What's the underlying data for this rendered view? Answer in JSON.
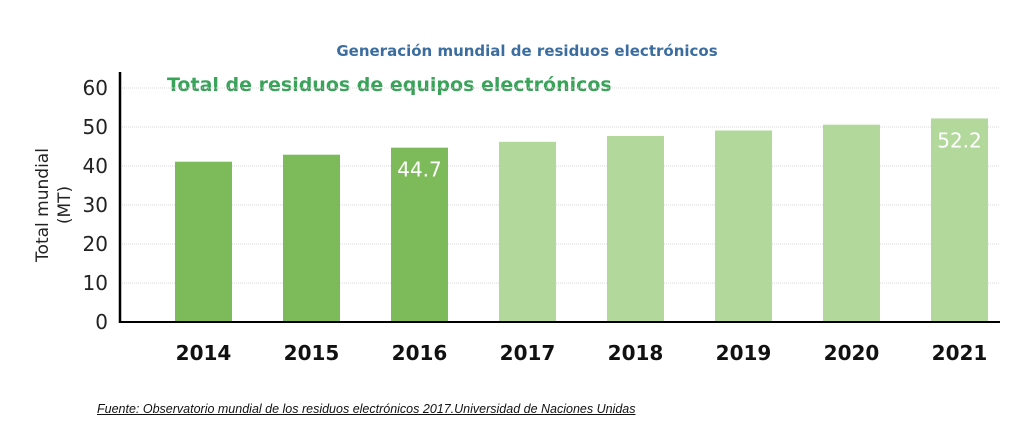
{
  "chart_data": {
    "type": "bar",
    "title": "Generación mundial de residuos electrónicos",
    "subtitle": "Total de residuos de equipos electrónicos",
    "ylabel": "Total mundial (MT)",
    "ylabel_lines": [
      "Total mundial",
      "(MT)"
    ],
    "xlabel": "",
    "ylim": [
      0,
      60
    ],
    "yticks": [
      0,
      10,
      20,
      30,
      40,
      50,
      60
    ],
    "grid": true,
    "categories": [
      "2014",
      "2015",
      "2016",
      "2017",
      "2018",
      "2019",
      "2020",
      "2021"
    ],
    "values": [
      41.1,
      42.9,
      44.7,
      46.2,
      47.7,
      49.1,
      50.6,
      52.2
    ],
    "projected": [
      false,
      false,
      false,
      true,
      true,
      true,
      true,
      true
    ],
    "data_labels": {
      "2016": "44.7",
      "2021": "52.2"
    },
    "colors": {
      "actual": "#7dbb5a",
      "projected": "#b3d89c",
      "title": "#3b6e9e",
      "subtitle": "#3aa35a"
    }
  },
  "source": "Fuente: Observatorio mundial de los residuos electrónicos 2017.Universidad de Naciones Unidas"
}
